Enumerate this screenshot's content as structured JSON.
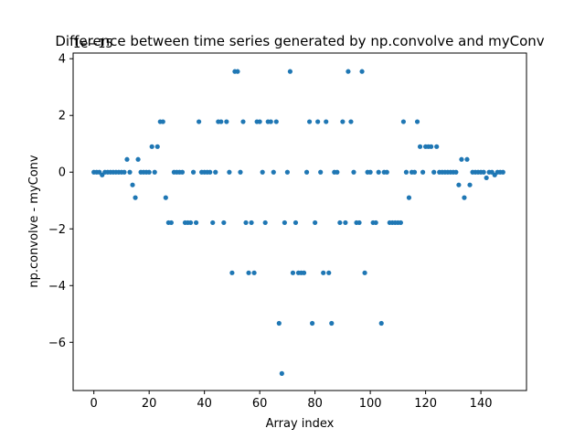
{
  "chart_data": {
    "type": "scatter",
    "title": "Difference between time series generated by np.convolve and myConv",
    "xlabel": "Array index",
    "ylabel": "np.convolve - myConv",
    "offset_label": "1e−15",
    "xlim": [
      -7.5,
      156.5
    ],
    "ylim": [
      -7.7,
      4.2
    ],
    "xticks": [
      0,
      20,
      40,
      60,
      80,
      100,
      120,
      140
    ],
    "yticks": [
      -6,
      -4,
      -2,
      0,
      2,
      4
    ],
    "ytick_labels": [
      "−6",
      "−4",
      "−2",
      "0",
      "2",
      "4"
    ],
    "grid": false,
    "marker_color": "#1f77b4",
    "series": [
      {
        "x": [
          0,
          1,
          2,
          3,
          4,
          5,
          6,
          7,
          8,
          9,
          10,
          11,
          12,
          13,
          14,
          15,
          16,
          17,
          18,
          19,
          20,
          21,
          22,
          23,
          24,
          25,
          26,
          27,
          28,
          29,
          30,
          31,
          32,
          33,
          34,
          35,
          36,
          37,
          38,
          39,
          40,
          41,
          42,
          43,
          44,
          45,
          46,
          47,
          48,
          49,
          50,
          51,
          52,
          53,
          54,
          55,
          56,
          57,
          58,
          59,
          60,
          61,
          62,
          63,
          64,
          65,
          66,
          67,
          68,
          69,
          70,
          71,
          72,
          73,
          74,
          75,
          76,
          77,
          78,
          79,
          80,
          81,
          82,
          83,
          84,
          85,
          86,
          87,
          88,
          89,
          90,
          91,
          92,
          93,
          94,
          95,
          96,
          97,
          98,
          99,
          100,
          101,
          102,
          103,
          104,
          105,
          106,
          107,
          108,
          109,
          110,
          111,
          112,
          113,
          114,
          115,
          116,
          117,
          118,
          119,
          120,
          121,
          122,
          123,
          124,
          125,
          126,
          127,
          128,
          129,
          130,
          131,
          132,
          133,
          134,
          135,
          136,
          137,
          138,
          139,
          140,
          141,
          142,
          143,
          144,
          145,
          146,
          147,
          148
        ],
        "y": [
          0,
          0,
          0,
          -0.1,
          0,
          0,
          0,
          0,
          0,
          0,
          0,
          0,
          0.45,
          0,
          -0.45,
          -0.9,
          0.45,
          0,
          0,
          0,
          0,
          0.9,
          0,
          0.9,
          1.78,
          1.78,
          -0.9,
          -1.78,
          -1.78,
          0,
          0,
          0,
          0,
          -1.78,
          -1.78,
          -1.78,
          0,
          -1.78,
          1.78,
          0,
          0,
          0,
          0,
          -1.78,
          0,
          1.78,
          1.78,
          -1.78,
          1.78,
          0,
          -3.55,
          3.55,
          3.55,
          0,
          1.78,
          -1.78,
          -3.55,
          -1.78,
          -3.55,
          1.78,
          1.78,
          0,
          -1.78,
          1.78,
          1.78,
          0,
          1.78,
          -5.33,
          -7.1,
          -1.78,
          0,
          3.55,
          -3.55,
          -1.78,
          -3.55,
          -3.55,
          -3.55,
          0,
          1.78,
          -5.33,
          -1.78,
          1.78,
          0,
          -3.55,
          1.78,
          -3.55,
          -5.33,
          0,
          0,
          -1.78,
          1.78,
          -1.78,
          3.55,
          1.78,
          0,
          -1.78,
          -1.78,
          3.55,
          -3.55,
          0,
          0,
          -1.78,
          -1.78,
          0,
          -5.33,
          0,
          0,
          -1.78,
          -1.78,
          -1.78,
          -1.78,
          -1.78,
          1.78,
          0,
          -0.9,
          0,
          0,
          1.78,
          0.9,
          0,
          0.9,
          0.9,
          0.9,
          0,
          0.9,
          0,
          0,
          0,
          0,
          0,
          0,
          0,
          -0.45,
          0.45,
          -0.9,
          0.45,
          -0.45,
          0,
          0,
          0,
          0,
          0,
          -0.2,
          0,
          0,
          -0.1,
          0,
          0,
          0
        ]
      }
    ]
  }
}
